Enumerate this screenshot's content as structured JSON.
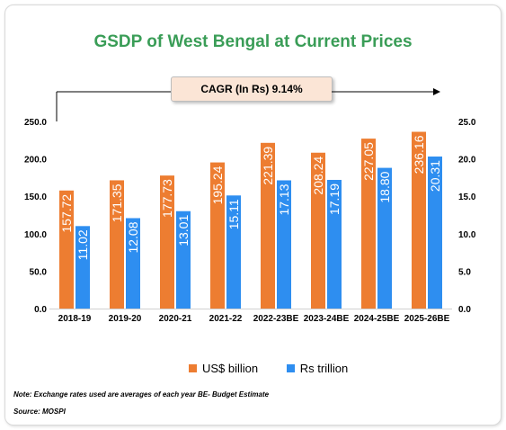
{
  "chart_data": {
    "type": "bar",
    "title": "GSDP of West Bengal at Current Prices",
    "annotation": "CAGR (In Rs) 9.14%",
    "categories": [
      "2018-19",
      "2019-20",
      "2020-21",
      "2021-22",
      "2022-23BE",
      "2023-24BE",
      "2024-25BE",
      "2025-26BE"
    ],
    "series": [
      {
        "name": "US$ billion",
        "axis": "left",
        "color": "#ed7d31",
        "values": [
          157.72,
          171.35,
          177.73,
          195.24,
          221.39,
          208.24,
          227.05,
          236.16
        ],
        "labels": [
          "157.72",
          "171.35",
          "177.73",
          "195.24",
          "221.39",
          "208.24",
          "227.05",
          "236.16"
        ]
      },
      {
        "name": "Rs trillion",
        "axis": "right",
        "color": "#2e8ef0",
        "values": [
          11.02,
          12.08,
          13.01,
          15.11,
          17.13,
          17.19,
          18.8,
          20.31
        ],
        "labels": [
          "11.02",
          "12.08",
          "13.01",
          "15.11",
          "17.13",
          "17.19",
          "18.80",
          "20.31"
        ]
      }
    ],
    "ylim_left": [
      0,
      250
    ],
    "yticks_left": [
      "0.0",
      "50.0",
      "100.0",
      "150.0",
      "200.0",
      "250.0"
    ],
    "ylim_right": [
      0,
      25
    ],
    "yticks_right": [
      "0.0",
      "5.0",
      "10.0",
      "15.0",
      "20.0",
      "25.0"
    ],
    "grid": false,
    "legend_position": "bottom"
  },
  "footer": {
    "note": "Note: Exchange rates used are averages of each year BE- Budget Estimate",
    "source": "Source: MOSPI"
  }
}
